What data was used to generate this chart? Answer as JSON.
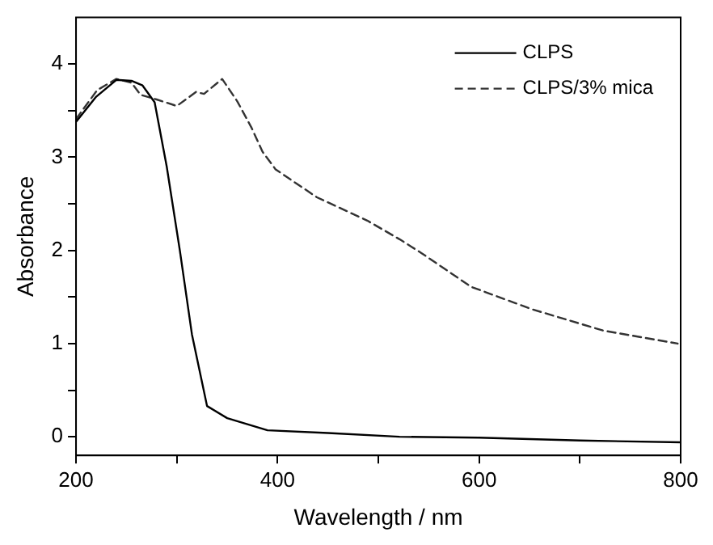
{
  "chart_data": {
    "type": "line",
    "xlabel": "Wavelength / nm",
    "ylabel": "Absorbance",
    "xlim": [
      200,
      800
    ],
    "xticks": [
      200,
      {
        "value": 300,
        "label": null
      },
      400,
      {
        "value": 500,
        "label": null
      },
      600,
      {
        "value": 700,
        "label": null
      },
      800
    ],
    "ylim": [
      -0.2,
      4.5
    ],
    "yticks": [
      0,
      {
        "value": 0.5,
        "label": null
      },
      1,
      {
        "value": 1.5,
        "label": null
      },
      2,
      {
        "value": 2.5,
        "label": null
      },
      3,
      {
        "value": 3.5,
        "label": null
      },
      4
    ],
    "grid": false,
    "legend": "top right",
    "marker": "none",
    "series": [
      {
        "name": "CLPS",
        "color": "#000000",
        "line_style": "solid",
        "x": [
          200,
          220,
          240,
          255,
          266,
          278,
          290,
          303,
          315,
          330,
          350,
          390,
          450,
          521,
          600,
          700,
          800
        ],
        "values": [
          3.38,
          3.65,
          3.83,
          3.82,
          3.77,
          3.59,
          2.9,
          2.0,
          1.1,
          0.33,
          0.2,
          0.07,
          0.04,
          0.0,
          -0.01,
          -0.04,
          -0.06
        ]
      },
      {
        "name": "CLPS/3% mica",
        "color": "#333333",
        "line_style": "dashed",
        "x": [
          200,
          221,
          240,
          255,
          264,
          280,
          300,
          319,
          327,
          345,
          360,
          374,
          385,
          398,
          439,
          489,
          521,
          543,
          592,
          652,
          723,
          797
        ],
        "values": [
          3.41,
          3.72,
          3.84,
          3.8,
          3.67,
          3.62,
          3.55,
          3.7,
          3.68,
          3.84,
          3.6,
          3.32,
          3.06,
          2.87,
          2.57,
          2.32,
          2.12,
          1.97,
          1.61,
          1.37,
          1.14,
          1.0
        ]
      }
    ]
  }
}
